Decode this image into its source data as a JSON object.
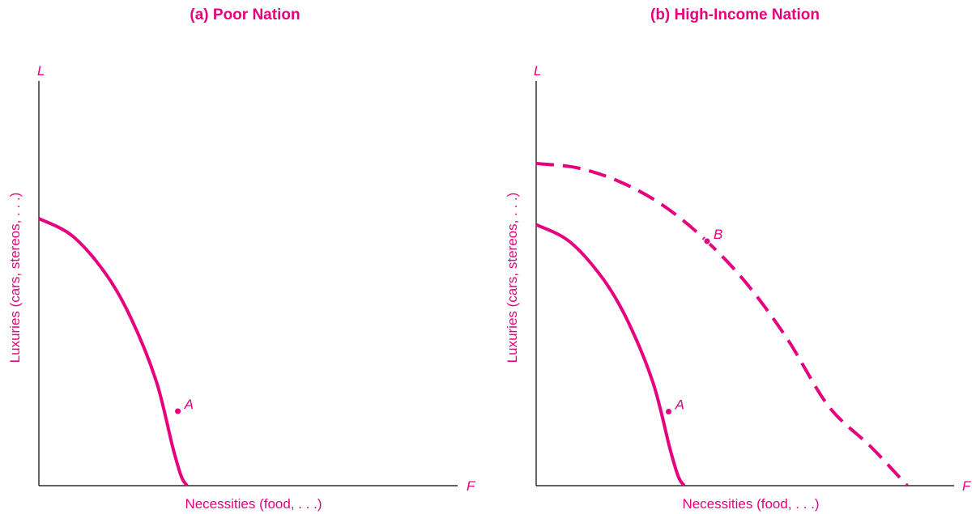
{
  "theme": {
    "accent": "#e6007e",
    "axis": "#000000"
  },
  "chart_data": [
    {
      "type": "line",
      "title": "(a) Poor Nation",
      "xlabel": "Necessities (food, . . .)",
      "ylabel": "Luxuries (cars, stereos, . . .)",
      "x_axis_letter": "F",
      "y_axis_letter": "L",
      "xlim": [
        0,
        100
      ],
      "ylim": [
        0,
        100
      ],
      "grid": false,
      "series": [
        {
          "style": "solid",
          "x": [
            0,
            8,
            16,
            22,
            28,
            32,
            34,
            35.4
          ],
          "y": [
            66,
            61.7,
            52.3,
            41.4,
            25.9,
            9.4,
            2.3,
            0
          ]
        }
      ],
      "points": [
        {
          "label": "A",
          "x": 33.2,
          "y": 18.4
        }
      ]
    },
    {
      "type": "line",
      "title": "(b) High-Income Nation",
      "xlabel": "Necessities (food, . . .)",
      "ylabel": "Luxuries (cars, stereos, . . .)",
      "x_axis_letter": "F",
      "y_axis_letter": "L",
      "xlim": [
        0,
        100
      ],
      "ylim": [
        0,
        100
      ],
      "grid": false,
      "series": [
        {
          "style": "solid",
          "x": [
            0,
            8,
            16,
            22,
            28,
            32,
            34,
            35.4
          ],
          "y": [
            64.5,
            60.3,
            51.1,
            40.5,
            25.3,
            9.2,
            2.3,
            0
          ]
        },
        {
          "style": "dashed",
          "x": [
            0,
            10,
            20,
            30,
            40,
            50,
            60,
            70,
            80,
            88.8
          ],
          "y": [
            79.6,
            78.5,
            75.1,
            69.5,
            61.2,
            50.4,
            36.4,
            19.6,
            9.7,
            0
          ]
        }
      ],
      "points": [
        {
          "label": "A",
          "x": 31.7,
          "y": 18.3
        },
        {
          "label": "B",
          "x": 40.9,
          "y": 60.4
        }
      ]
    }
  ]
}
